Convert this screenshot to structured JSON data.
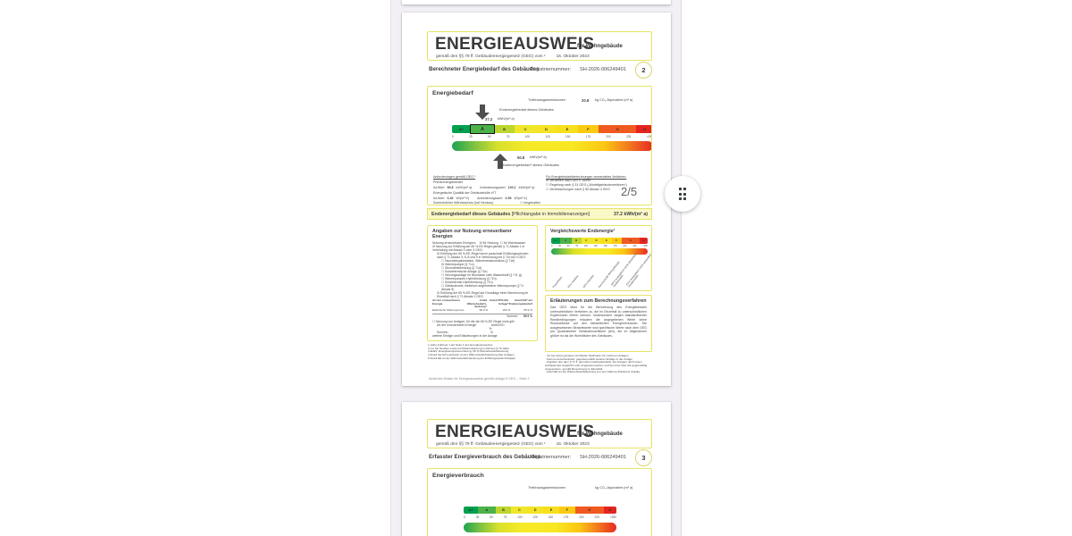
{
  "viewer": {
    "page_indicator": "2/5"
  },
  "scale": {
    "letters": [
      "A+",
      "A",
      "B",
      "C",
      "D",
      "E",
      "F",
      "G",
      "H"
    ],
    "colors": [
      "#00a04e",
      "#4db248",
      "#bdd62f",
      "#f0e72b",
      "#f5e424",
      "#f8df1b",
      "#fbcb12",
      "#f0591f",
      "#e52420"
    ],
    "ticks": [
      "0",
      "25",
      "50",
      "75",
      "100",
      "125",
      "150",
      "175",
      "200",
      "225",
      ">250"
    ],
    "highlight": "A"
  },
  "certificate": {
    "title": "ENERGIEAUSWEIS",
    "title_suffix": "für Wohngebäude",
    "law_line": "gemäß den §§ 79 ff. Gebäudeenergiegesetz (GEG) vom ¹",
    "law_date": "16. Oktober 2023",
    "reg_label": "Registriernummer:",
    "reg_number": "SH-2026-006249401"
  },
  "page2": {
    "page_badge": "2",
    "doc_type": "Berechneter Energiebedarf des Gebäudes",
    "energiebedarf": {
      "heading": "Energiebedarf",
      "ghg_label": "Treibhausgasemissionen",
      "ghg_value": "20.8",
      "ghg_unit": "kg CO₂-Äquivalent (m² a)",
      "end_label": "Endenergiebedarf dieses Gebäudes",
      "end_value": "37.2",
      "end_unit": "kWh/(m² a)",
      "prim_value": "50.8",
      "prim_unit": "kWh/(m² a)",
      "prim_label": "Primärenergiebedarf⁴ dieses Gebäudes",
      "requirements": {
        "heading": "Anforderungen gemäß GEG ¹",
        "row1_label": "Primärenergiebedarf",
        "ist_label": "Ist-Wert",
        "req_label": "Anforderungswert",
        "row1_ist": "50.8",
        "row1_req": "100.1",
        "row1_unit": "kWh/(m² a)",
        "row2_label": "Energetische Qualität der Gebäudehülle H'T",
        "row2_ist": "0.46",
        "row2_req": "0.55",
        "row2_unit": "W/(m²·K)",
        "row3_label": "Sommerlicher Wärmeschutz (bei Neubau)",
        "row3_value": "☐ eingehalten"
      },
      "verfahren": {
        "heading": "Für Energiebedarfsberechnungen verwendetes Verfahren:",
        "options": [
          "☒ Verfahren nach DIN V 18599",
          "☐ Regelung nach § 31 GEG („Modellgebäudeverfahren“)",
          "☐ Vereinfachungen nach § 50 Absatz 4 GEG"
        ]
      }
    },
    "band": {
      "label": "Endenergiebedarf dieses Gebäudes ",
      "label_note": "[Pflichtangabe in Immobilienanzeigen]",
      "value": "37.2 kWh/(m² a)"
    },
    "erneuerbare": {
      "heading": "Angaben zur Nutzung erneuerbarer Energien",
      "lines": [
        {
          "i": 0,
          "t": "Nutzung erneuerbarer Energien¹    ☒ für Heizung  ☐ für Warmwasser"
        },
        {
          "i": 0,
          "t": "☒ Nutzung zur Erfüllung der 65 %-EE-Regel gemäß § 71 Absatz 1 in Verbindung mit Absatz 2 oder 3 GEG:"
        },
        {
          "i": 1,
          "t": "☒ Erfüllung der 65 %-EE-Regel durch pauschale Erfüllungsoptionen nach § 71 Absatz 3, 5–8 und 9 in Verbindung mit § 71b bis h GEG:"
        },
        {
          "i": 2,
          "t": "☐ Hausübergabestation, Wärmenetzanschluss (§ 71b)"
        },
        {
          "i": 2,
          "t": "☒ Wärmepumpe (§ 71c)"
        },
        {
          "i": 2,
          "t": "☐ Stromdirektheizung (§ 71d)"
        },
        {
          "i": 2,
          "t": "☐ Solarthermische Anlage (§ 71e)"
        },
        {
          "i": 2,
          "t": "☐ Heizungsanlage für Biomasse oder Wasserstoff (§ 71f, g)"
        },
        {
          "i": 2,
          "t": "☐ Wärmepumpen-Hybridheizung (§ 71h)"
        },
        {
          "i": 2,
          "t": "☐ Solarthermie-Hybridheizung (§ 71h)"
        },
        {
          "i": 2,
          "t": "☐ Gebäudenetz, elektrisch angetriebene Wärmepumpe (§ 71 Absatz 5)"
        },
        {
          "i": 1,
          "t": "☒ Erfüllung der 65 %-EE-Regel auf Grundlage einer Berechnung im Einzelfall nach § 71 Absatz 2 GEG"
        }
      ],
      "table": {
        "col0": "Art der erneuerbaren Energie",
        "col1": "Anteil Wärmebedarfs­deckung⁴",
        "col2": "Anteil 65%-EE-Anlage⁵",
        "col3": "Anteil EE¹ am Endenergiebedarf",
        "row_label": "Elektrische Wärmepumpe",
        "row_v1": "95.9 %",
        "row_v2": "100 %",
        "row_v3": "95.9 %",
        "sum_label": "Summe¹",
        "sum_value": "95.9 %"
      },
      "lines2": [
        {
          "i": 0,
          "t": "☐ Nutzung von Anlagen, für die die 65 %-EE-Regel nicht gilt²"
        },
        {
          "i": 1,
          "t": "Art der erneuerbaren Energie                  Anteil EE¹"
        },
        {
          "i": 1,
          "t": "                                                              %"
        },
        {
          "i": 1,
          "t": "Summe¹                                                  %"
        },
        {
          "i": 0,
          "t": "weitere Erträge und Erläuterungen in der Anlage"
        }
      ],
      "footnotes": [
        "1 siehe Fußnote 1 auf Seite 1 des Energieausweises",
        "2 nur bei Neubau sowie bei Modernisierung im Fall des § 71i GEG",
        "3 EnEV: Energieeinsparverordnung, 65 % Wärmebedarfsdeckung",
        "4 Anteil der Erneuerbaren an der Wärmebedarfsdeckung aller Anlagen",
        "5 Anteil EE an der Wärmebedarfsdeckung der Erfüllungsoption/Anlagen"
      ]
    },
    "vergleich": {
      "heading": "Vergleichswerte Endenergie¹",
      "labels": [
        "Passivhaus",
        "EFH Neubau",
        "MFH Neubau",
        "Durchschnitt Wohngebäude",
        "MFH energetisch nicht wesentlich modernisiert",
        "EFH energetisch nicht wesentlich modernisiert"
      ]
    },
    "erlaeuterungen": {
      "heading": "Erläuterungen zum Berechnungsverfahren",
      "text": "Das GEG lässt für die Berechnung des Energiebedarfs unterschiedliche Verfahren zu, die im Einzelfall zu unterschiedlichen Ergebnissen führen können. Insbesondere wegen standardisierter Randbedingungen erlauben die angegebenen Werte keine Rückschlüsse auf den tatsächlichen Energieverbrauch. Die ausgewiesenen Bedarfswerte sind spezifische Werte nach dem GEG pro Quadratmeter Gebäudenutzfläche (AN), die im Allgemeinen größer ist als die Wohnfläche des Gebäudes.",
      "footnotes": [
        "· nur bei einem genauer ermittelten Nachweis mit mehreren Anlagen",
        "· Summe anrechenbarer, gegebenenfalls weiterer Erträge in der Anlage",
        "· Angaben des dem § 71 ff. genutzten Gebäudeanteils: bei Anlagen nach einem Gebäudenetz angeführt oder angepasst werden und bei einer über die gegenwärtig vorgesehene, gemäß Berechnung im Einzelfall",
        "· Anteil EE an der Wärmebedarfsdeckung von dem Wärme-/Kältenetz anteilig"
      ]
    },
    "footer": "Amtliches Muster für Energieausweise gemäß Anlage 6 GEG – Seite 2"
  },
  "page3": {
    "page_badge": "3",
    "doc_type": "Erfasster Energieverbrauch des Gebäudes",
    "energieverbrauch": {
      "heading": "Energieverbrauch",
      "ghg_label": "Treibhausgasemissionen",
      "ghg_unit": "kg CO₂-Äquivalent (m² a)"
    }
  }
}
